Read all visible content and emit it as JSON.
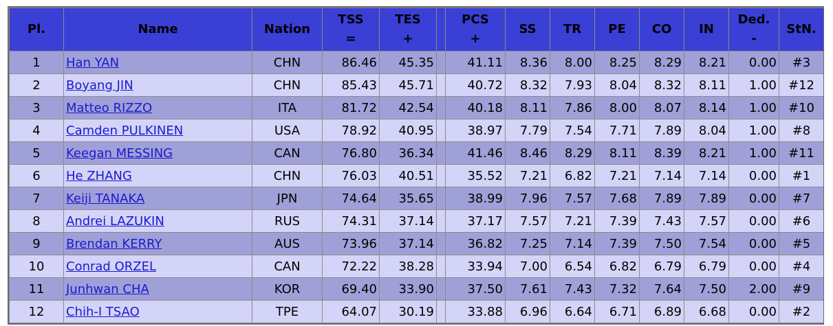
{
  "table": {
    "headers": {
      "place": "Pl.",
      "name": "Name",
      "nation": "Nation",
      "tss": "TSS",
      "tss_sub": "=",
      "tes": "TES",
      "tes_sub": "+",
      "pcs": "PCS",
      "pcs_sub": "+",
      "ss": "SS",
      "tr": "TR",
      "pe": "PE",
      "co": "CO",
      "in": "IN",
      "ded": "Ded.",
      "ded_sub": "-",
      "stn": "StN."
    },
    "rows": [
      {
        "pl": "1",
        "name": "Han YAN",
        "nation": "CHN",
        "tss": "86.46",
        "tes": "45.35",
        "pcs": "41.11",
        "ss": "8.36",
        "tr": "8.00",
        "pe": "8.25",
        "co": "8.29",
        "in": "8.21",
        "ded": "0.00",
        "stn": "#3"
      },
      {
        "pl": "2",
        "name": "Boyang JIN",
        "nation": "CHN",
        "tss": "85.43",
        "tes": "45.71",
        "pcs": "40.72",
        "ss": "8.32",
        "tr": "7.93",
        "pe": "8.04",
        "co": "8.32",
        "in": "8.11",
        "ded": "1.00",
        "stn": "#12"
      },
      {
        "pl": "3",
        "name": "Matteo RIZZO",
        "nation": "ITA",
        "tss": "81.72",
        "tes": "42.54",
        "pcs": "40.18",
        "ss": "8.11",
        "tr": "7.86",
        "pe": "8.00",
        "co": "8.07",
        "in": "8.14",
        "ded": "1.00",
        "stn": "#10"
      },
      {
        "pl": "4",
        "name": "Camden PULKINEN",
        "nation": "USA",
        "tss": "78.92",
        "tes": "40.95",
        "pcs": "38.97",
        "ss": "7.79",
        "tr": "7.54",
        "pe": "7.71",
        "co": "7.89",
        "in": "8.04",
        "ded": "1.00",
        "stn": "#8"
      },
      {
        "pl": "5",
        "name": "Keegan MESSING",
        "nation": "CAN",
        "tss": "76.80",
        "tes": "36.34",
        "pcs": "41.46",
        "ss": "8.46",
        "tr": "8.29",
        "pe": "8.11",
        "co": "8.39",
        "in": "8.21",
        "ded": "1.00",
        "stn": "#11"
      },
      {
        "pl": "6",
        "name": "He ZHANG",
        "nation": "CHN",
        "tss": "76.03",
        "tes": "40.51",
        "pcs": "35.52",
        "ss": "7.21",
        "tr": "6.82",
        "pe": "7.21",
        "co": "7.14",
        "in": "7.14",
        "ded": "0.00",
        "stn": "#1"
      },
      {
        "pl": "7",
        "name": "Keiji TANAKA",
        "nation": "JPN",
        "tss": "74.64",
        "tes": "35.65",
        "pcs": "38.99",
        "ss": "7.96",
        "tr": "7.57",
        "pe": "7.68",
        "co": "7.89",
        "in": "7.89",
        "ded": "0.00",
        "stn": "#7"
      },
      {
        "pl": "8",
        "name": "Andrei LAZUKIN",
        "nation": "RUS",
        "tss": "74.31",
        "tes": "37.14",
        "pcs": "37.17",
        "ss": "7.57",
        "tr": "7.21",
        "pe": "7.39",
        "co": "7.43",
        "in": "7.57",
        "ded": "0.00",
        "stn": "#6"
      },
      {
        "pl": "9",
        "name": "Brendan KERRY",
        "nation": "AUS",
        "tss": "73.96",
        "tes": "37.14",
        "pcs": "36.82",
        "ss": "7.25",
        "tr": "7.14",
        "pe": "7.39",
        "co": "7.50",
        "in": "7.54",
        "ded": "0.00",
        "stn": "#5"
      },
      {
        "pl": "10",
        "name": "Conrad ORZEL",
        "nation": "CAN",
        "tss": "72.22",
        "tes": "38.28",
        "pcs": "33.94",
        "ss": "7.00",
        "tr": "6.54",
        "pe": "6.82",
        "co": "6.79",
        "in": "6.79",
        "ded": "0.00",
        "stn": "#4"
      },
      {
        "pl": "11",
        "name": "Junhwan CHA",
        "nation": "KOR",
        "tss": "69.40",
        "tes": "33.90",
        "pcs": "37.50",
        "ss": "7.61",
        "tr": "7.43",
        "pe": "7.32",
        "co": "7.64",
        "in": "7.50",
        "ded": "2.00",
        "stn": "#9"
      },
      {
        "pl": "12",
        "name": "Chih-I TSAO",
        "nation": "TPE",
        "tss": "64.07",
        "tes": "30.19",
        "pcs": "33.88",
        "ss": "6.96",
        "tr": "6.64",
        "pe": "6.71",
        "co": "6.89",
        "in": "6.68",
        "ded": "0.00",
        "stn": "#2"
      }
    ]
  },
  "colors": {
    "header_bg": "#3a3fd6",
    "row_odd_bg": "#a0a0d8",
    "row_even_bg": "#d4d4f8",
    "link": "#1a1ad0",
    "border": "#6b6b6b"
  }
}
